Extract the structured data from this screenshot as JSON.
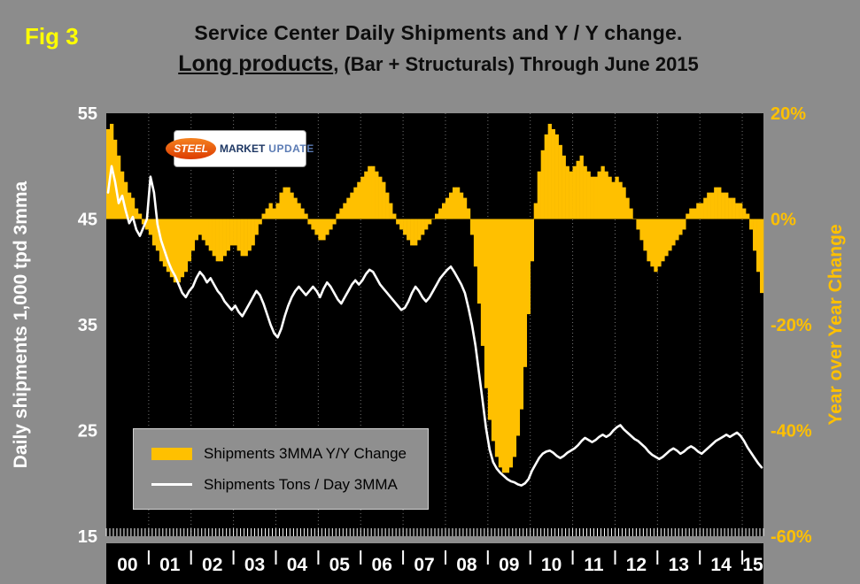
{
  "figure": {
    "tag": "Fig 3",
    "title_line1": "Service Center Daily Shipments and Y / Y change.",
    "title_line2_emphasis": "Long products",
    "title_line2_rest": ", (Bar + Structurals) Through June 2015"
  },
  "logo": {
    "steel": "STEEL",
    "market": "MARKET",
    "update": "UPDATE"
  },
  "legend": {
    "bar_label": "Shipments 3MMA Y/Y Change",
    "line_label": "Shipments Tons / Day 3MMA"
  },
  "colors": {
    "background": "#8C8C8C",
    "plot_bg": "#000000",
    "bar": "#FFC000",
    "line": "#FFFFFF",
    "fig_tag": "#FFFF00",
    "left_axis_text": "#FFFFFF",
    "right_axis_text": "#FFC000",
    "title_text": "#0D0D0D"
  },
  "chart_data": {
    "type": "bar+line",
    "title": "Service Center Daily Shipments and Y / Y change. Long products, (Bar + Structurals) Through June 2015",
    "x_start_year": 2000,
    "months": 186,
    "grid": "vertical-dotted-yearly",
    "legend_position": "inside-lower-left",
    "x_ticks": [
      "00",
      "01",
      "02",
      "03",
      "04",
      "05",
      "06",
      "07",
      "08",
      "09",
      "10",
      "11",
      "12",
      "13",
      "14",
      "15"
    ],
    "left_axis": {
      "label": "Daily shipments 1,000 tpd 3mma",
      "ticks": [
        55,
        45,
        35,
        25,
        15
      ],
      "range": [
        15,
        55
      ]
    },
    "right_axis": {
      "label": "Year over Year Change",
      "ticks": [
        "20%",
        "0%",
        "-20%",
        "-40%",
        "-60%"
      ],
      "tick_values": [
        20,
        0,
        -20,
        -40,
        -60
      ],
      "range": [
        -60,
        20
      ]
    },
    "series": [
      {
        "name": "Shipments 3MMA Y/Y Change",
        "type": "bar",
        "axis": "right",
        "unit": "percent",
        "values": [
          17,
          18,
          15,
          12,
          9,
          7,
          5,
          4,
          2,
          1,
          -1,
          -2,
          -3,
          -5,
          -6,
          -8,
          -9,
          -10,
          -11,
          -12,
          -12,
          -11,
          -10,
          -8,
          -6,
          -4,
          -3,
          -4,
          -5,
          -6,
          -7,
          -8,
          -8,
          -7,
          -6,
          -5,
          -5,
          -6,
          -7,
          -7,
          -6,
          -5,
          -3,
          -1,
          1,
          2,
          3,
          2,
          3,
          5,
          6,
          6,
          5,
          4,
          3,
          2,
          1,
          -1,
          -2,
          -3,
          -4,
          -4,
          -3,
          -2,
          -1,
          1,
          2,
          3,
          4,
          5,
          6,
          7,
          8,
          9,
          10,
          10,
          9,
          8,
          7,
          5,
          3,
          1,
          -1,
          -2,
          -3,
          -4,
          -5,
          -5,
          -4,
          -3,
          -2,
          -1,
          0,
          1,
          2,
          3,
          4,
          5,
          6,
          6,
          5,
          4,
          2,
          -3,
          -9,
          -16,
          -24,
          -32,
          -38,
          -42,
          -45,
          -47,
          -48,
          -48,
          -47,
          -45,
          -41,
          -36,
          -28,
          -18,
          -8,
          3,
          9,
          13,
          16,
          18,
          17,
          16,
          14,
          12,
          10,
          9,
          10,
          11,
          12,
          10,
          9,
          8,
          8,
          9,
          10,
          9,
          8,
          7,
          8,
          7,
          6,
          4,
          2,
          0,
          -2,
          -4,
          -6,
          -8,
          -9,
          -10,
          -9,
          -8,
          -7,
          -6,
          -5,
          -4,
          -3,
          -2,
          1,
          2,
          2,
          3,
          3,
          4,
          5,
          5,
          6,
          6,
          5,
          5,
          4,
          4,
          3,
          3,
          2,
          1,
          -2,
          -6,
          -10,
          -14
        ]
      },
      {
        "name": "Shipments Tons / Day 3MMA",
        "type": "line",
        "axis": "left",
        "unit": "1000 tpd",
        "values": [
          47.5,
          50.0,
          48.5,
          46.5,
          47.2,
          45.8,
          44.6,
          45.2,
          44.0,
          43.4,
          44.2,
          45.0,
          49.0,
          47.5,
          44.5,
          43.0,
          42.0,
          41.0,
          40.2,
          39.6,
          38.8,
          38.0,
          37.6,
          38.2,
          38.6,
          39.4,
          40.0,
          39.6,
          39.0,
          39.4,
          38.8,
          38.2,
          37.8,
          37.2,
          36.8,
          36.4,
          36.8,
          36.2,
          35.8,
          36.4,
          37.0,
          37.6,
          38.2,
          37.8,
          37.0,
          36.0,
          35.0,
          34.2,
          33.8,
          34.6,
          35.8,
          36.8,
          37.6,
          38.2,
          38.6,
          38.2,
          37.8,
          38.2,
          38.6,
          38.2,
          37.6,
          38.4,
          39.0,
          38.6,
          38.0,
          37.4,
          37.0,
          37.6,
          38.2,
          38.8,
          39.2,
          38.8,
          39.2,
          39.8,
          40.2,
          40.0,
          39.4,
          38.8,
          38.4,
          38.0,
          37.6,
          37.2,
          36.8,
          36.4,
          36.6,
          37.2,
          38.0,
          38.6,
          38.2,
          37.6,
          37.2,
          37.6,
          38.2,
          38.8,
          39.4,
          39.8,
          40.2,
          40.5,
          40.0,
          39.4,
          38.8,
          38.0,
          36.6,
          35.0,
          33.0,
          30.4,
          27.8,
          25.2,
          23.2,
          22.0,
          21.4,
          21.0,
          20.7,
          20.4,
          20.2,
          20.1,
          19.9,
          19.8,
          20.0,
          20.4,
          21.2,
          21.8,
          22.4,
          22.8,
          23.0,
          23.1,
          22.9,
          22.6,
          22.4,
          22.6,
          22.9,
          23.1,
          23.3,
          23.6,
          24.0,
          24.3,
          24.1,
          23.9,
          24.1,
          24.4,
          24.6,
          24.4,
          24.6,
          25.0,
          25.3,
          25.5,
          25.1,
          24.8,
          24.5,
          24.2,
          24.0,
          23.7,
          23.4,
          23.0,
          22.7,
          22.5,
          22.3,
          22.5,
          22.8,
          23.1,
          23.3,
          23.1,
          22.8,
          23.0,
          23.3,
          23.5,
          23.3,
          23.0,
          22.8,
          23.1,
          23.4,
          23.7,
          24.0,
          24.2,
          24.4,
          24.6,
          24.4,
          24.6,
          24.8,
          24.5,
          24.0,
          23.4,
          22.9,
          22.4,
          21.9,
          21.5
        ]
      }
    ]
  }
}
